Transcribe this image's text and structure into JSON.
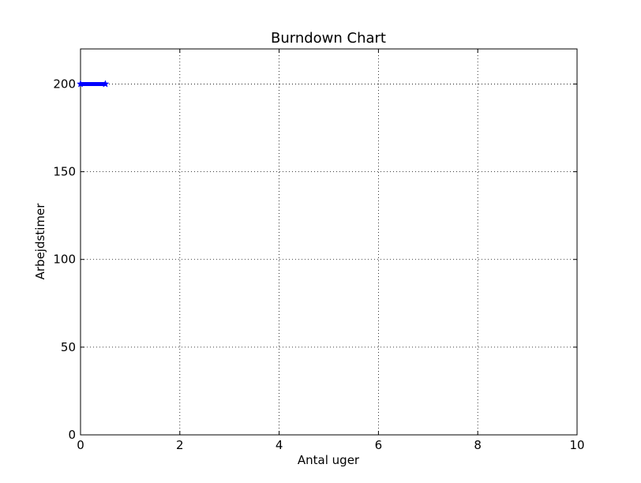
{
  "chart_data": {
    "type": "line",
    "title": "Burndown Chart",
    "xlabel": "Antal uger",
    "ylabel": "Arbejdstimer",
    "xlim": [
      0,
      10
    ],
    "ylim": [
      0,
      220
    ],
    "xticks": [
      0,
      2,
      4,
      6,
      8,
      10
    ],
    "yticks": [
      0,
      50,
      100,
      150,
      200
    ],
    "xtick_labels": [
      "0",
      "2",
      "4",
      "6",
      "8",
      "10"
    ],
    "ytick_labels": [
      "0",
      "50",
      "100",
      "150",
      "200"
    ],
    "grid": true,
    "series": [
      {
        "x": [
          0,
          0.5
        ],
        "y": [
          200,
          200
        ],
        "color": "#0000ff",
        "marker": "star"
      }
    ]
  }
}
